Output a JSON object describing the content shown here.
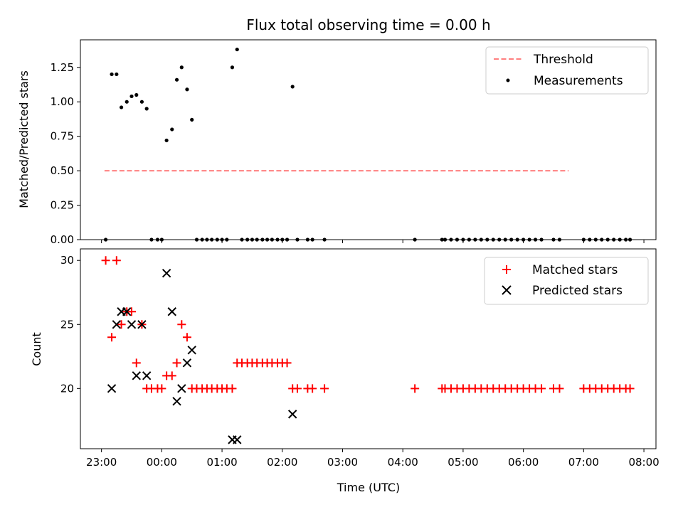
{
  "chart_data": [
    {
      "type": "scatter",
      "title": "Flux total observing time = 0.00 h",
      "xlabel": "",
      "ylabel": "Matched/Predicted stars",
      "x_unit": "hours since 23:00 UTC",
      "xlim": [
        -0.35,
        9.2
      ],
      "ylim": [
        0,
        1.45
      ],
      "yticks": [
        "0.00",
        "0.25",
        "0.50",
        "0.75",
        "1.00",
        "1.25"
      ],
      "yticks_values": [
        0,
        0.25,
        0.5,
        0.75,
        1.0,
        1.25
      ],
      "grid": false,
      "legend_position": "top-right",
      "legend": [
        {
          "name": "Threshold",
          "style": "dashed-line",
          "color": "#ff7f7f"
        },
        {
          "name": "Measurements",
          "style": "dot",
          "color": "#000000"
        }
      ],
      "threshold": {
        "y": 0.5,
        "x_range": [
          0.05,
          7.75
        ],
        "color": "#ff7f7f"
      },
      "series": [
        {
          "name": "Measurements",
          "color": "#000000",
          "points": [
            [
              0.07,
              0.0
            ],
            [
              0.17,
              1.2
            ],
            [
              0.25,
              1.2
            ],
            [
              0.33,
              0.96
            ],
            [
              0.42,
              1.0
            ],
            [
              0.5,
              1.04
            ],
            [
              0.58,
              1.05
            ],
            [
              0.67,
              1.0
            ],
            [
              0.75,
              0.95
            ],
            [
              0.83,
              0.0
            ],
            [
              0.93,
              0.0
            ],
            [
              1.0,
              0.0
            ],
            [
              1.08,
              0.72
            ],
            [
              1.17,
              0.8
            ],
            [
              1.25,
              1.16
            ],
            [
              1.33,
              1.25
            ],
            [
              1.42,
              1.09
            ],
            [
              1.5,
              0.87
            ],
            [
              1.58,
              0.0
            ],
            [
              1.67,
              0.0
            ],
            [
              1.75,
              0.0
            ],
            [
              1.83,
              0.0
            ],
            [
              1.92,
              0.0
            ],
            [
              2.0,
              0.0
            ],
            [
              2.08,
              0.0
            ],
            [
              2.17,
              1.25
            ],
            [
              2.25,
              1.38
            ],
            [
              2.33,
              0.0
            ],
            [
              2.42,
              0.0
            ],
            [
              2.5,
              0.0
            ],
            [
              2.58,
              0.0
            ],
            [
              2.67,
              0.0
            ],
            [
              2.75,
              0.0
            ],
            [
              2.83,
              0.0
            ],
            [
              2.92,
              0.0
            ],
            [
              3.0,
              0.0
            ],
            [
              3.08,
              0.0
            ],
            [
              3.17,
              1.11
            ],
            [
              3.25,
              0.0
            ],
            [
              3.42,
              0.0
            ],
            [
              3.5,
              0.0
            ],
            [
              3.7,
              0.0
            ],
            [
              5.2,
              0.0
            ],
            [
              5.65,
              0.0
            ],
            [
              5.7,
              0.0
            ],
            [
              5.8,
              0.0
            ],
            [
              5.9,
              0.0
            ],
            [
              6.0,
              0.0
            ],
            [
              6.1,
              0.0
            ],
            [
              6.2,
              0.0
            ],
            [
              6.3,
              0.0
            ],
            [
              6.4,
              0.0
            ],
            [
              6.5,
              0.0
            ],
            [
              6.6,
              0.0
            ],
            [
              6.7,
              0.0
            ],
            [
              6.8,
              0.0
            ],
            [
              6.9,
              0.0
            ],
            [
              7.0,
              0.0
            ],
            [
              7.1,
              0.0
            ],
            [
              7.2,
              0.0
            ],
            [
              7.3,
              0.0
            ],
            [
              7.5,
              0.0
            ],
            [
              7.6,
              0.0
            ],
            [
              8.0,
              0.0
            ],
            [
              8.1,
              0.0
            ],
            [
              8.2,
              0.0
            ],
            [
              8.3,
              0.0
            ],
            [
              8.4,
              0.0
            ],
            [
              8.5,
              0.0
            ],
            [
              8.6,
              0.0
            ],
            [
              8.7,
              0.0
            ],
            [
              8.77,
              0.0
            ]
          ]
        }
      ]
    },
    {
      "type": "scatter",
      "title": "",
      "xlabel": "Time (UTC)",
      "ylabel": "Count",
      "x_unit": "hours since 23:00 UTC",
      "xlim": [
        -0.35,
        9.2
      ],
      "ylim": [
        15.3,
        30.9
      ],
      "xticks": [
        "23:00",
        "00:00",
        "01:00",
        "02:00",
        "03:00",
        "04:00",
        "05:00",
        "06:00",
        "07:00",
        "08:00"
      ],
      "xticks_values": [
        0,
        1,
        2,
        3,
        4,
        5,
        6,
        7,
        8,
        9
      ],
      "yticks": [
        "20",
        "25",
        "30"
      ],
      "yticks_values": [
        20,
        25,
        30
      ],
      "grid": false,
      "legend_position": "top-right",
      "legend": [
        {
          "name": "Matched stars",
          "marker": "plus",
          "color": "#ff0000"
        },
        {
          "name": "Predicted stars",
          "marker": "x",
          "color": "#000000"
        }
      ],
      "series": [
        {
          "name": "Matched stars",
          "marker": "plus",
          "color": "#ff0000",
          "points": [
            [
              0.07,
              30
            ],
            [
              0.17,
              24
            ],
            [
              0.25,
              30
            ],
            [
              0.33,
              25
            ],
            [
              0.42,
              26
            ],
            [
              0.5,
              26
            ],
            [
              0.58,
              22
            ],
            [
              0.67,
              25
            ],
            [
              0.75,
              20
            ],
            [
              0.83,
              20
            ],
            [
              0.93,
              20
            ],
            [
              1.0,
              20
            ],
            [
              1.08,
              21
            ],
            [
              1.17,
              21
            ],
            [
              1.25,
              22
            ],
            [
              1.33,
              25
            ],
            [
              1.42,
              24
            ],
            [
              1.5,
              20
            ],
            [
              1.58,
              20
            ],
            [
              1.67,
              20
            ],
            [
              1.75,
              20
            ],
            [
              1.83,
              20
            ],
            [
              1.92,
              20
            ],
            [
              2.0,
              20
            ],
            [
              2.08,
              20
            ],
            [
              2.17,
              20
            ],
            [
              2.25,
              22
            ],
            [
              2.33,
              22
            ],
            [
              2.42,
              22
            ],
            [
              2.5,
              22
            ],
            [
              2.58,
              22
            ],
            [
              2.67,
              22
            ],
            [
              2.75,
              22
            ],
            [
              2.83,
              22
            ],
            [
              2.92,
              22
            ],
            [
              3.0,
              22
            ],
            [
              3.08,
              22
            ],
            [
              3.17,
              20
            ],
            [
              3.25,
              20
            ],
            [
              3.42,
              20
            ],
            [
              3.5,
              20
            ],
            [
              3.7,
              20
            ],
            [
              5.2,
              20
            ],
            [
              5.65,
              20
            ],
            [
              5.7,
              20
            ],
            [
              5.8,
              20
            ],
            [
              5.9,
              20
            ],
            [
              6.0,
              20
            ],
            [
              6.1,
              20
            ],
            [
              6.2,
              20
            ],
            [
              6.3,
              20
            ],
            [
              6.4,
              20
            ],
            [
              6.5,
              20
            ],
            [
              6.6,
              20
            ],
            [
              6.7,
              20
            ],
            [
              6.8,
              20
            ],
            [
              6.9,
              20
            ],
            [
              7.0,
              20
            ],
            [
              7.1,
              20
            ],
            [
              7.2,
              20
            ],
            [
              7.3,
              20
            ],
            [
              7.5,
              20
            ],
            [
              7.6,
              20
            ],
            [
              8.0,
              20
            ],
            [
              8.1,
              20
            ],
            [
              8.2,
              20
            ],
            [
              8.3,
              20
            ],
            [
              8.4,
              20
            ],
            [
              8.5,
              20
            ],
            [
              8.6,
              20
            ],
            [
              8.7,
              20
            ],
            [
              8.77,
              20
            ]
          ]
        },
        {
          "name": "Predicted stars",
          "marker": "x",
          "color": "#000000",
          "points": [
            [
              0.17,
              20
            ],
            [
              0.25,
              25
            ],
            [
              0.33,
              26
            ],
            [
              0.42,
              26
            ],
            [
              0.5,
              25
            ],
            [
              0.58,
              21
            ],
            [
              0.67,
              25
            ],
            [
              0.75,
              21
            ],
            [
              1.08,
              29
            ],
            [
              1.17,
              26
            ],
            [
              1.25,
              19
            ],
            [
              1.33,
              20
            ],
            [
              1.42,
              22
            ],
            [
              1.5,
              23
            ],
            [
              2.17,
              16
            ],
            [
              2.25,
              16
            ],
            [
              3.17,
              18
            ]
          ]
        }
      ]
    }
  ]
}
